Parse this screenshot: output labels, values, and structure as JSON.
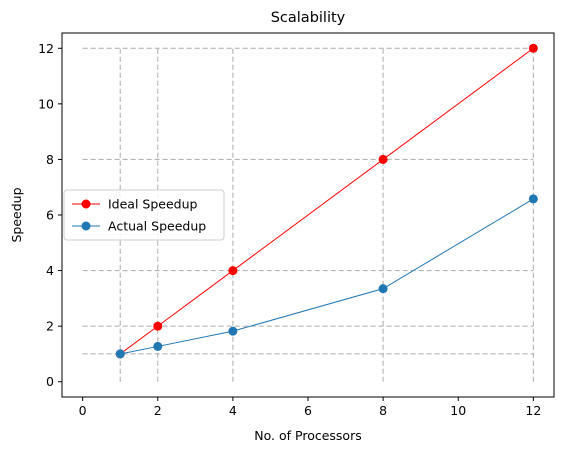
{
  "chart_data": {
    "type": "line",
    "title": "Scalability",
    "xlabel": "No. of Processors",
    "ylabel": "Speedup",
    "xlim": [
      -0.55,
      12.55
    ],
    "ylim": [
      -0.55,
      12.55
    ],
    "xticks": [
      0,
      2,
      4,
      6,
      8,
      10,
      12
    ],
    "yticks": [
      0,
      2,
      4,
      6,
      8,
      10,
      12
    ],
    "legend_position": "center-left",
    "grid": "dashed reference lines at data points",
    "series": [
      {
        "name": "Ideal Speedup",
        "color": "#ff0000",
        "marker": "circle",
        "x": [
          1,
          2,
          4,
          8,
          12
        ],
        "y": [
          1,
          2,
          4,
          8,
          12
        ]
      },
      {
        "name": "Actual Speedup",
        "color": "#1f77b4",
        "marker": "circle",
        "x": [
          1,
          2,
          4,
          8,
          12
        ],
        "y": [
          1.0,
          1.27,
          1.82,
          3.35,
          6.58
        ]
      }
    ],
    "reference_lines": {
      "vertical_x": [
        1,
        2,
        4,
        8,
        12
      ],
      "horizontal_y": [
        1,
        2,
        4,
        8,
        12
      ],
      "color": "#aaaaaa",
      "style": "dashed"
    }
  }
}
